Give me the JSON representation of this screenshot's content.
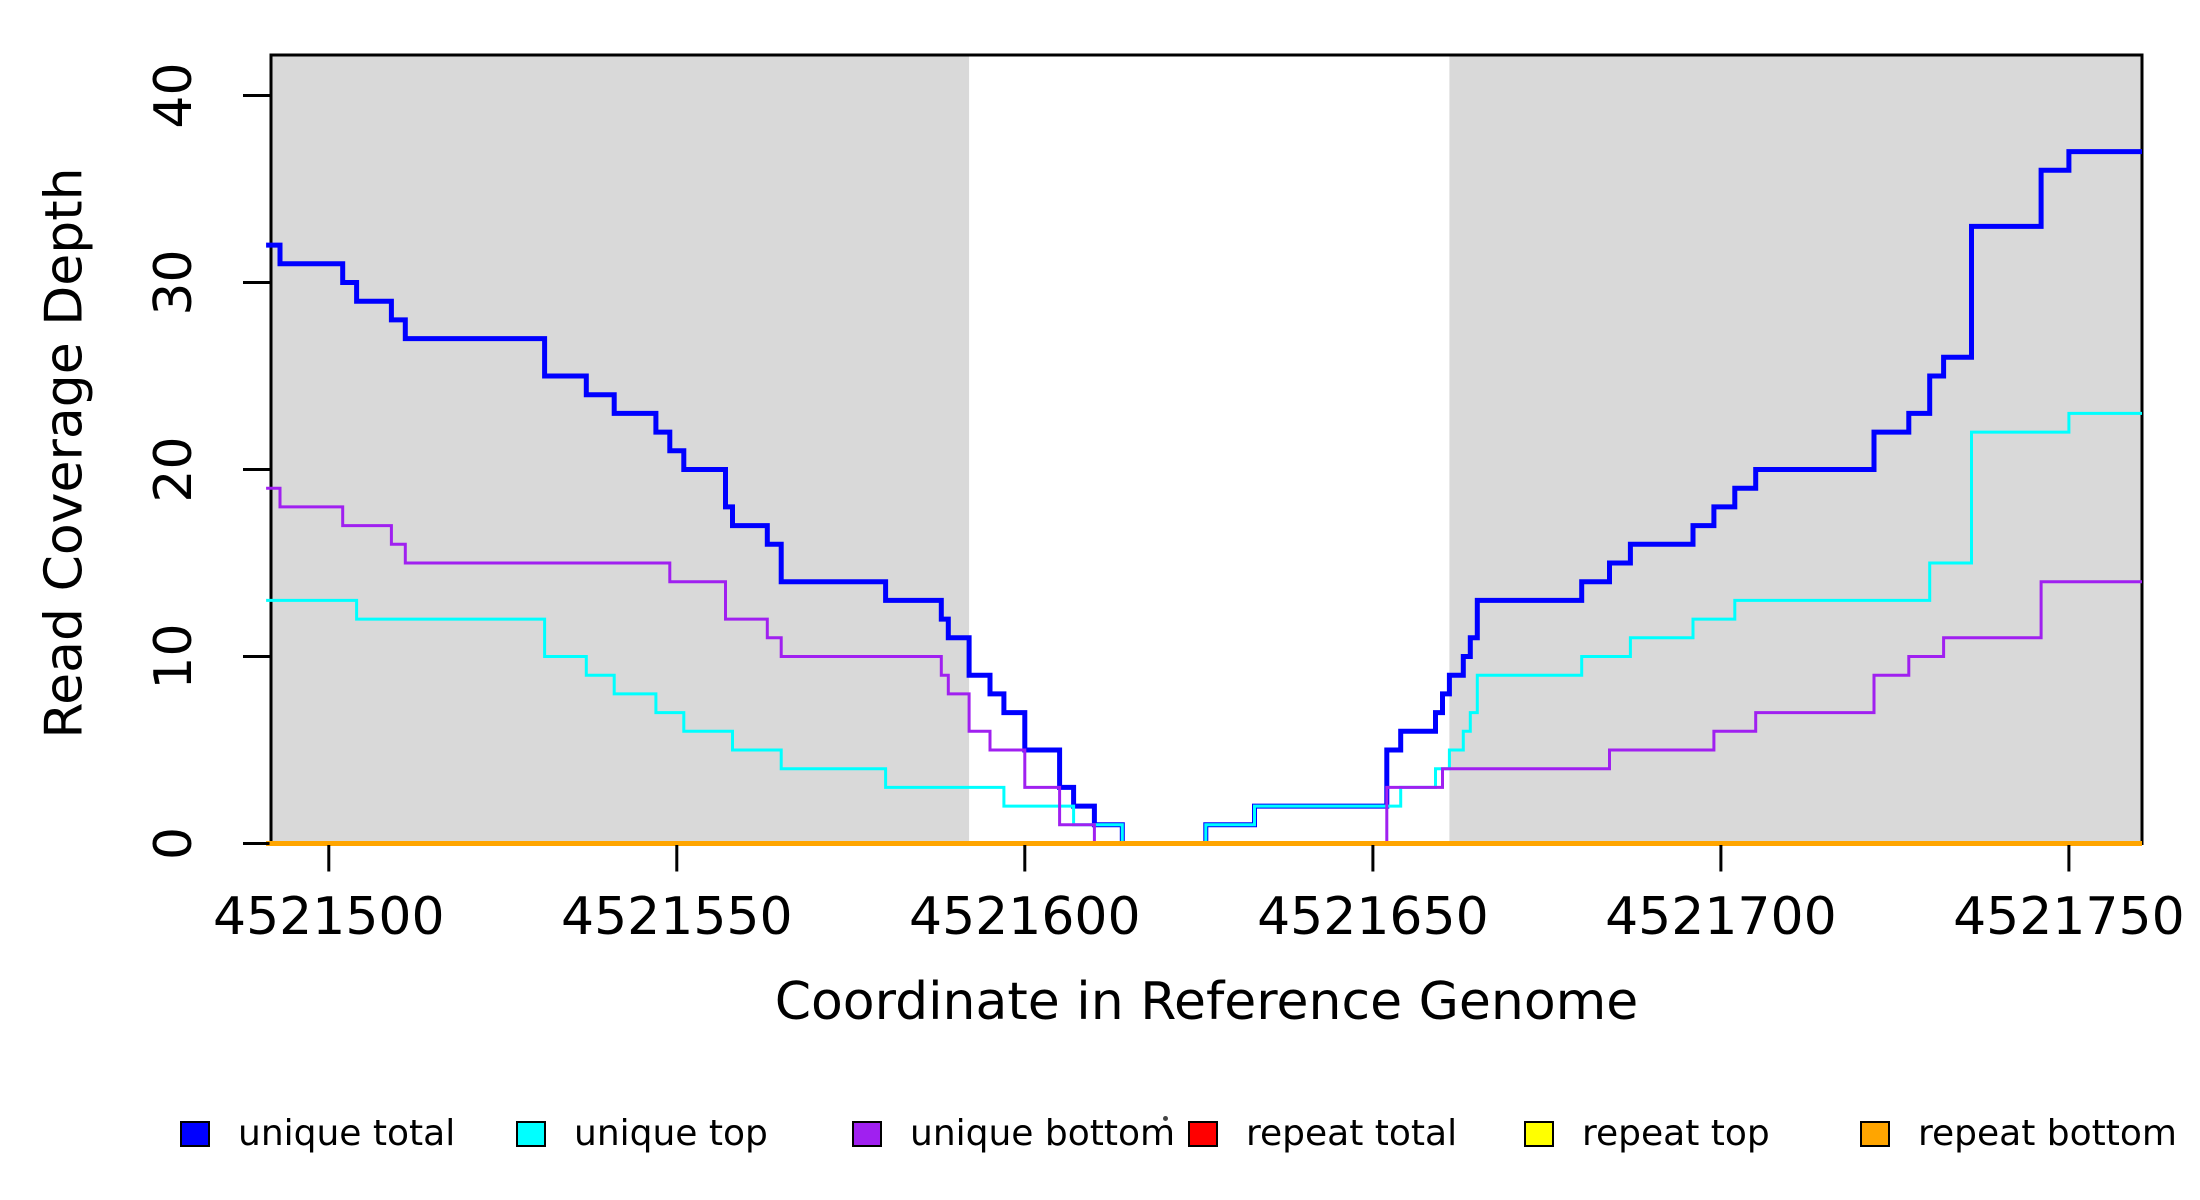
{
  "chart_data": {
    "type": "line",
    "subtype": "step",
    "title": "",
    "xlabel": "Coordinate in Reference Genome",
    "ylabel": "Read Coverage Depth",
    "xlim": [
      4521491.7,
      4521760.5
    ],
    "ylim": [
      0,
      40
    ],
    "x_ticks": [
      4521500,
      4521550,
      4521600,
      4521650,
      4521700,
      4521750
    ],
    "y_ticks": [
      0,
      10,
      20,
      30,
      40
    ],
    "grid": false,
    "legend_position": "bottom",
    "shading_color": "#D9D9D9",
    "background_shading": [
      {
        "x_start": 4521491.7,
        "x_end": 4521592
      },
      {
        "x_start": 4521661,
        "x_end": 4521760.5
      }
    ],
    "series": [
      {
        "name": "unique total",
        "color": "#0000FF",
        "line_width": 5,
        "steps": [
          [
            4521491,
            32
          ],
          [
            4521493,
            31
          ],
          [
            4521502,
            30
          ],
          [
            4521504,
            29
          ],
          [
            4521509,
            28
          ],
          [
            4521511,
            27
          ],
          [
            4521531,
            25
          ],
          [
            4521537,
            24
          ],
          [
            4521541,
            23
          ],
          [
            4521547,
            22
          ],
          [
            4521549,
            21
          ],
          [
            4521551,
            20
          ],
          [
            4521557,
            18
          ],
          [
            4521558,
            17
          ],
          [
            4521563,
            16
          ],
          [
            4521565,
            14
          ],
          [
            4521580,
            13
          ],
          [
            4521588,
            12
          ],
          [
            4521589,
            11
          ],
          [
            4521592,
            9
          ],
          [
            4521595,
            8
          ],
          [
            4521597,
            7
          ],
          [
            4521600,
            5
          ],
          [
            4521605,
            3
          ],
          [
            4521607,
            2
          ],
          [
            4521610,
            1
          ],
          [
            4521614,
            0
          ],
          [
            4521626,
            1
          ],
          [
            4521633,
            2
          ],
          [
            4521652,
            5
          ],
          [
            4521654,
            6
          ],
          [
            4521659,
            7
          ],
          [
            4521660,
            8
          ],
          [
            4521661,
            9
          ],
          [
            4521663,
            10
          ],
          [
            4521664,
            11
          ],
          [
            4521665,
            13
          ],
          [
            4521680,
            14
          ],
          [
            4521684,
            15
          ],
          [
            4521687,
            16
          ],
          [
            4521696,
            17
          ],
          [
            4521699,
            18
          ],
          [
            4521702,
            19
          ],
          [
            4521705,
            20
          ],
          [
            4521722,
            22
          ],
          [
            4521727,
            23
          ],
          [
            4521730,
            25
          ],
          [
            4521732,
            26
          ],
          [
            4521736,
            33
          ],
          [
            4521746,
            36
          ],
          [
            4521750,
            37
          ]
        ]
      },
      {
        "name": "unique top",
        "color": "#00FFFF",
        "line_width": 3,
        "steps": [
          [
            4521491,
            13
          ],
          [
            4521504,
            12
          ],
          [
            4521531,
            10
          ],
          [
            4521537,
            9
          ],
          [
            4521541,
            8
          ],
          [
            4521547,
            7
          ],
          [
            4521551,
            6
          ],
          [
            4521558,
            5
          ],
          [
            4521565,
            4
          ],
          [
            4521580,
            3
          ],
          [
            4521597,
            2
          ],
          [
            4521607,
            1
          ],
          [
            4521614,
            0
          ],
          [
            4521626,
            1
          ],
          [
            4521633,
            2
          ],
          [
            4521654,
            3
          ],
          [
            4521659,
            4
          ],
          [
            4521661,
            5
          ],
          [
            4521663,
            6
          ],
          [
            4521664,
            7
          ],
          [
            4521665,
            9
          ],
          [
            4521680,
            10
          ],
          [
            4521687,
            11
          ],
          [
            4521696,
            12
          ],
          [
            4521702,
            13
          ],
          [
            4521730,
            15
          ],
          [
            4521736,
            22
          ],
          [
            4521750,
            23
          ]
        ]
      },
      {
        "name": "unique bottom",
        "color": "#A020F0",
        "line_width": 3,
        "steps": [
          [
            4521491,
            19
          ],
          [
            4521493,
            18
          ],
          [
            4521502,
            17
          ],
          [
            4521509,
            16
          ],
          [
            4521511,
            15
          ],
          [
            4521549,
            14
          ],
          [
            4521557,
            12
          ],
          [
            4521563,
            11
          ],
          [
            4521565,
            10
          ],
          [
            4521588,
            9
          ],
          [
            4521589,
            8
          ],
          [
            4521592,
            6
          ],
          [
            4521595,
            5
          ],
          [
            4521600,
            3
          ],
          [
            4521605,
            1
          ],
          [
            4521610,
            0
          ],
          [
            4521652,
            3
          ],
          [
            4521660,
            4
          ],
          [
            4521684,
            5
          ],
          [
            4521699,
            6
          ],
          [
            4521705,
            7
          ],
          [
            4521722,
            9
          ],
          [
            4521727,
            10
          ],
          [
            4521732,
            11
          ],
          [
            4521746,
            14
          ]
        ]
      },
      {
        "name": "repeat total",
        "color": "#FF0000",
        "line_width": 4,
        "steps": [
          [
            4521491,
            0
          ]
        ]
      },
      {
        "name": "repeat top",
        "color": "#FFFF00",
        "line_width": 4,
        "steps": [
          [
            4521491,
            0
          ]
        ]
      },
      {
        "name": "repeat bottom",
        "color": "#FFA500",
        "line_width": 5,
        "steps": [
          [
            4521491,
            0
          ]
        ]
      }
    ],
    "legend": [
      {
        "label": "unique total",
        "color": "#0000FF"
      },
      {
        "label": "unique top",
        "color": "#00FFFF"
      },
      {
        "label": "unique bottom",
        "color": "#A020F0"
      },
      {
        "label": "repeat total",
        "color": "#FF0000"
      },
      {
        "label": "repeat top",
        "color": "#FFFF00"
      },
      {
        "label": "repeat bottom",
        "color": "#FFA500"
      }
    ]
  }
}
